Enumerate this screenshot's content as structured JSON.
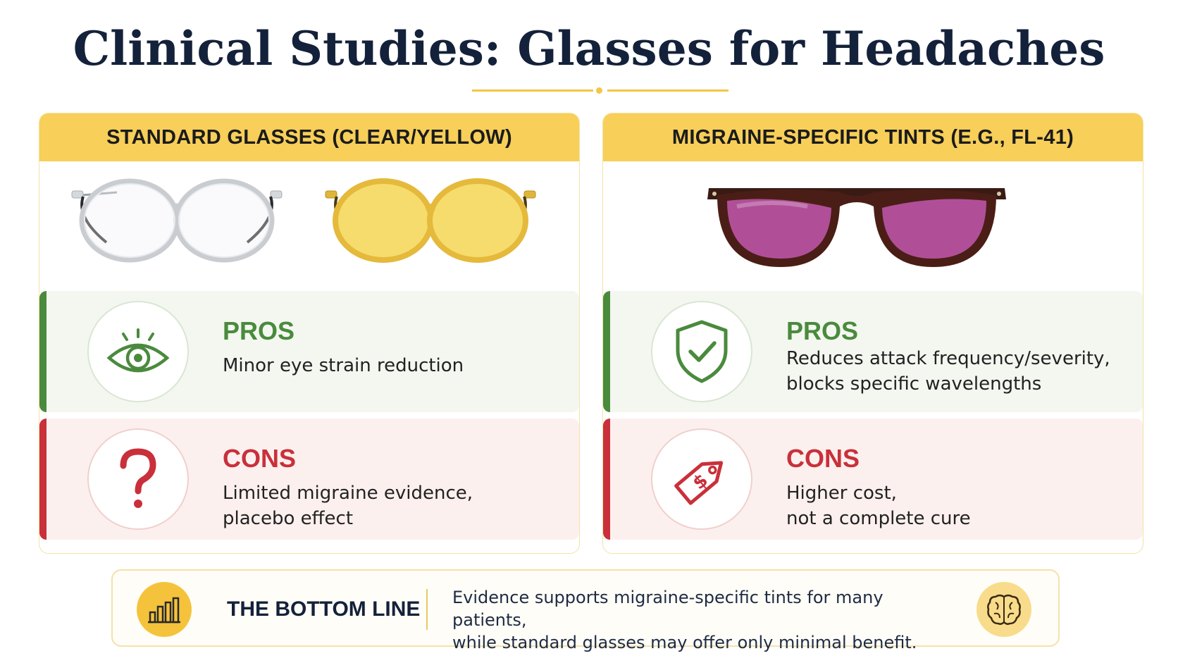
{
  "title": "Clinical Studies: Glasses for Headaches",
  "panels": {
    "standard": {
      "header": "STANDARD GLASSES (CLEAR/YELLOW)",
      "pros": {
        "label": "PROS",
        "lines": [
          "Minor eye strain reduction"
        ],
        "icon": "eye-icon"
      },
      "cons": {
        "label": "CONS",
        "lines": [
          "Limited migraine evidence,",
          "placebo effect"
        ],
        "icon": "question-mark-icon"
      }
    },
    "tinted": {
      "header": "MIGRAINE-SPECIFIC TINTS (E.G., FL-41)",
      "pros": {
        "label": "PROS",
        "lines": [
          "Reduces attack frequency/severity,",
          "blocks specific wavelengths"
        ],
        "icon": "shield-check-icon"
      },
      "cons": {
        "label": "CONS",
        "lines": [
          "Higher cost,",
          "not a complete cure"
        ],
        "icon": "price-tag-icon"
      }
    }
  },
  "bottom_line": {
    "label": "THE BOTTOM LINE",
    "lines": [
      "Evidence supports migraine-specific tints for many patients,",
      "while standard glasses may offer only minimal benefit."
    ],
    "icons": [
      "bar-chart-icon",
      "brain-icon"
    ]
  },
  "colors": {
    "header_yellow": "#f7cf59",
    "pros_green": "#4a8a3d",
    "cons_red": "#c9303a",
    "title_navy": "#14213a",
    "fl41_tint": "#b04f98"
  }
}
